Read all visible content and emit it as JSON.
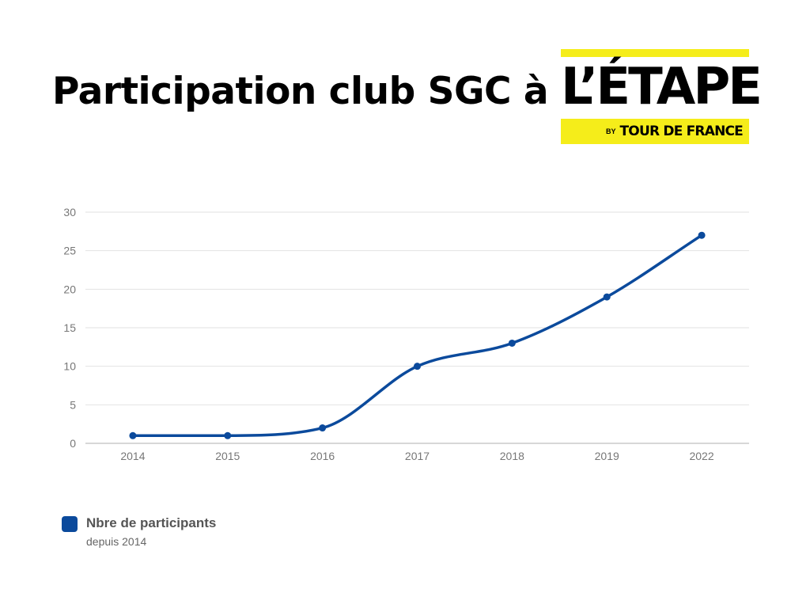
{
  "title": "Participation club SGC à",
  "logo": {
    "word": "L’ÉTAPE",
    "by": "BY",
    "brand": "TOUR DE FRANCE",
    "yellow": "#f5ed1a"
  },
  "legend": {
    "name": "Nbre de participants",
    "subtitle": "depuis 2014",
    "placement": "bottom-left"
  },
  "chart_data": {
    "type": "line",
    "title": "",
    "xlabel": "",
    "ylabel": "",
    "categories": [
      "2014",
      "2015",
      "2016",
      "2017",
      "2018",
      "2019",
      "2022"
    ],
    "series": [
      {
        "name": "Nbre de participants",
        "values": [
          1,
          1,
          2,
          10,
          13,
          19,
          27
        ],
        "color": "#0b4a9c"
      }
    ],
    "ylim": [
      0,
      30
    ],
    "yticks": [
      "0",
      "5",
      "10",
      "15",
      "20",
      "25",
      "30"
    ],
    "grid": true,
    "smooth": true
  }
}
